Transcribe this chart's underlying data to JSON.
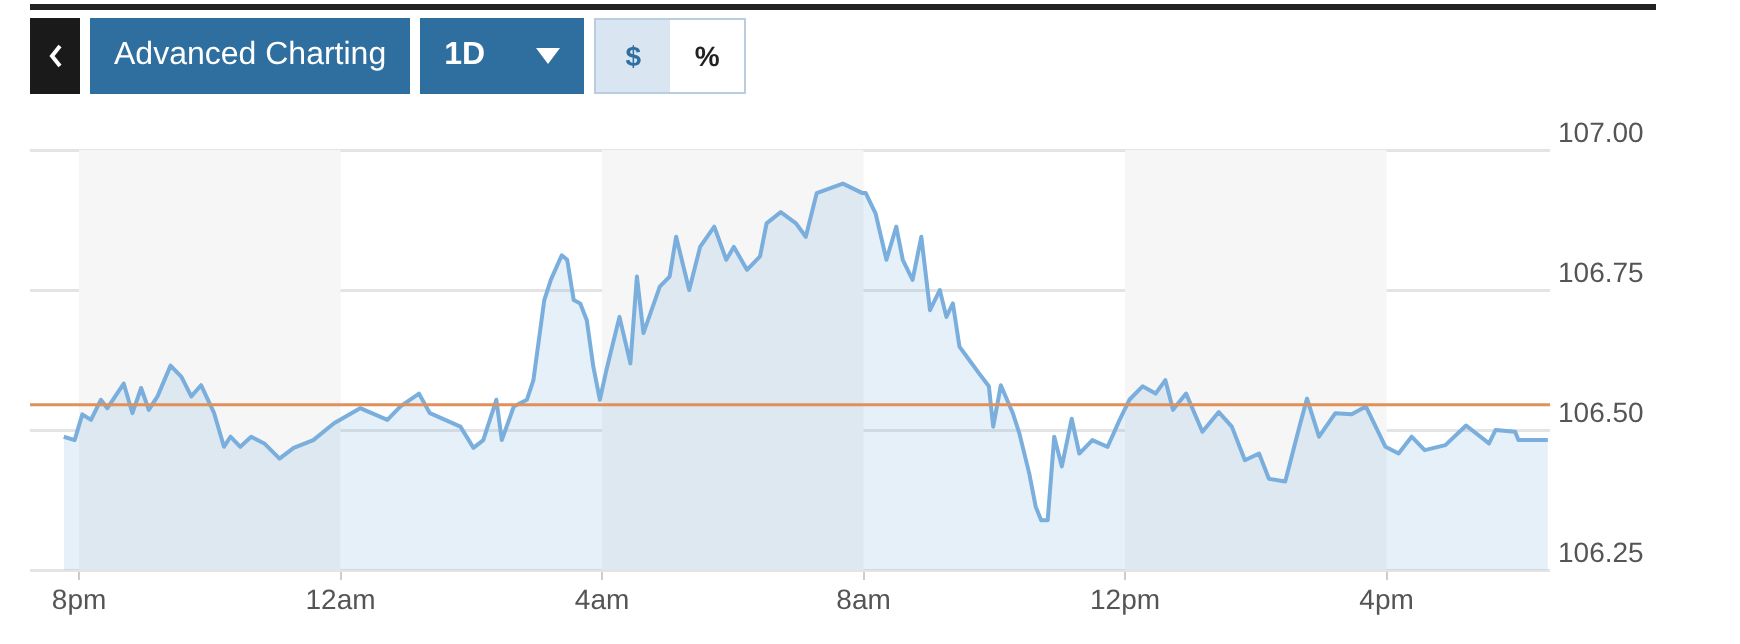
{
  "chart_data": {
    "type": "area",
    "annotations": [
      "Advanced Charting",
      "1D",
      "$",
      "%"
    ],
    "x": [
      "--01-01T19:46",
      "--01-01T19:56",
      "--01-01T20:03",
      "--01-01T20:11",
      "--01-01T20:20",
      "--01-01T20:26",
      "--01-01T20:41",
      "--01-01T20:49",
      "--01-01T20:57",
      "--01-01T21:04",
      "--01-01T21:12",
      "--01-01T21:24",
      "--01-01T21:34",
      "--01-01T21:43",
      "--01-01T21:52",
      "--01-01T22:04",
      "--01-01T22:13",
      "--01-01T22:19",
      "--01-01T22:28",
      "--01-01T22:38",
      "--01-01T22:50",
      "--01-01T23:04",
      "--01-01T23:17",
      "--01-01T23:35",
      "--01-01T23:54",
      "--01-02T00:18",
      "--01-02T00:43",
      "--01-02T00:55",
      "--01-02T01:12",
      "--01-02T01:22",
      "--01-02T01:50",
      "--01-02T02:02",
      "--01-02T02:11",
      "--01-02T02:23",
      "--01-02T02:28",
      "--01-02T02:39",
      "--01-02T02:51",
      "--01-02T02:57",
      "--01-02T03:07",
      "--01-02T03:13",
      "--01-02T03:23",
      "--01-02T03:28",
      "--01-02T03:34",
      "--01-02T03:40",
      "--01-02T03:46",
      "--01-02T03:52",
      "--01-02T03:58",
      "--01-02T04:04",
      "--01-02T04:16",
      "--01-02T04:26",
      "--01-02T04:32",
      "--01-02T04:38",
      "--01-02T04:53",
      "--01-02T05:02",
      "--01-02T05:08",
      "--01-02T05:20",
      "--01-02T05:30",
      "--01-02T05:43",
      "--01-02T05:54",
      "--01-02T06:01",
      "--01-02T06:13",
      "--01-02T06:25",
      "--01-02T06:31",
      "--01-02T06:44",
      "--01-02T06:58",
      "--01-02T07:07",
      "--01-02T07:17",
      "--01-02T07:41",
      "--01-02T07:59",
      "--01-02T08:02",
      "--01-02T08:11",
      "--01-02T08:21",
      "--01-02T08:30",
      "--01-02T08:36",
      "--01-02T08:45",
      "--01-02T08:53",
      "--01-02T09:01",
      "--01-02T09:10",
      "--01-02T09:16",
      "--01-02T09:22",
      "--01-02T09:28",
      "--01-02T09:37",
      "--01-02T09:46",
      "--01-02T09:55",
      "--01-02T09:59",
      "--01-02T10:06",
      "--01-02T10:17",
      "--01-02T10:23",
      "--01-02T10:32",
      "--01-02T10:38",
      "--01-02T10:43",
      "--01-02T10:49",
      "--01-02T10:55",
      "--01-02T11:02",
      "--01-02T11:11",
      "--01-02T11:18",
      "--01-02T11:30",
      "--01-02T11:44",
      "--01-02T11:55",
      "--01-02T12:04",
      "--01-02T12:16",
      "--01-02T12:28",
      "--01-02T12:37",
      "--01-02T12:44",
      "--01-02T12:56",
      "--01-02T13:11",
      "--01-02T13:26",
      "--01-02T13:38",
      "--01-02T13:50",
      "--01-02T14:03",
      "--01-02T14:12",
      "--01-02T14:27",
      "--01-02T14:40",
      "--01-02T14:47",
      "--01-02T14:58",
      "--01-02T15:13",
      "--01-02T15:28",
      "--01-02T15:41",
      "--01-02T15:59",
      "--01-02T16:11",
      "--01-02T16:23",
      "--01-02T16:35",
      "--01-02T16:54",
      "--01-02T17:13",
      "--01-02T17:34",
      "--01-02T17:40",
      "--01-02T17:58",
      "--01-02T18:01",
      "--01-02T18:28"
    ],
    "series": [
      {
        "color": "#7aaedc",
        "values": [
          106.488,
          106.482,
          106.528,
          106.518,
          106.554,
          106.539,
          106.583,
          106.53,
          106.575,
          106.536,
          106.56,
          106.615,
          106.595,
          106.56,
          106.58,
          106.53,
          106.47,
          106.488,
          106.47,
          106.488,
          106.476,
          106.449,
          106.468,
          106.482,
          106.512,
          106.539,
          106.518,
          106.542,
          106.565,
          106.53,
          106.506,
          106.468,
          106.482,
          106.554,
          106.482,
          106.542,
          106.554,
          106.589,
          106.732,
          106.768,
          106.812,
          106.804,
          106.732,
          106.726,
          106.696,
          106.613,
          106.554,
          106.607,
          106.702,
          106.619,
          106.774,
          106.673,
          106.756,
          106.774,
          106.845,
          106.75,
          106.827,
          106.863,
          106.804,
          106.827,
          106.786,
          106.81,
          106.869,
          106.889,
          106.869,
          106.845,
          106.923,
          106.94,
          106.923,
          106.923,
          106.887,
          106.804,
          106.863,
          106.804,
          106.768,
          106.845,
          106.714,
          106.75,
          106.702,
          106.726,
          106.649,
          106.625,
          106.601,
          106.578,
          106.506,
          106.58,
          106.53,
          106.494,
          106.423,
          106.363,
          106.339,
          106.339,
          106.488,
          106.435,
          106.52,
          106.458,
          106.482,
          106.47,
          106.518,
          106.554,
          106.578,
          106.565,
          106.589,
          106.536,
          106.565,
          106.497,
          106.532,
          106.506,
          106.446,
          106.458,
          106.413,
          106.408,
          106.506,
          106.556,
          106.488,
          106.53,
          106.528,
          106.542,
          106.47,
          106.458,
          106.488,
          106.464,
          106.473,
          106.508,
          106.476,
          106.5,
          106.497,
          106.482,
          106.482
        ]
      }
    ],
    "xlim": [
      "--01-01T19:15",
      "--01-02T18:30"
    ],
    "xticks": [
      {
        "value": "--01-01T20:00",
        "label": "8pm"
      },
      {
        "value": "--01-02T00:00",
        "label": "12am"
      },
      {
        "value": "--01-02T04:00",
        "label": "4am"
      },
      {
        "value": "--01-02T08:00",
        "label": "8am"
      },
      {
        "value": "--01-02T12:00",
        "label": "12pm"
      },
      {
        "value": "--01-02T16:00",
        "label": "4pm"
      }
    ],
    "ylim": [
      106.25,
      107
    ],
    "yticks": [
      {
        "value": 106.25,
        "label": "106.25"
      },
      {
        "value": 106.5,
        "label": "106.50"
      },
      {
        "value": 106.75,
        "label": "106.75"
      },
      {
        "value": 107,
        "label": "107.00"
      }
    ],
    "grid": "y",
    "legend": false,
    "marker": "none",
    "line_style": "solid",
    "ref_lines": [
      {
        "axis": "y",
        "value": 106.545,
        "color": "#e0905a"
      }
    ],
    "bands": [
      {
        "axis": "x",
        "from": "--01-01T20:00",
        "to": "--01-02T00:00",
        "color": "#f6f6f6"
      },
      {
        "axis": "x",
        "from": "--01-02T04:00",
        "to": "--01-02T08:00",
        "color": "#f6f6f6"
      },
      {
        "axis": "x",
        "from": "--01-02T12:00",
        "to": "--01-02T16:00",
        "color": "#f6f6f6"
      }
    ]
  }
}
